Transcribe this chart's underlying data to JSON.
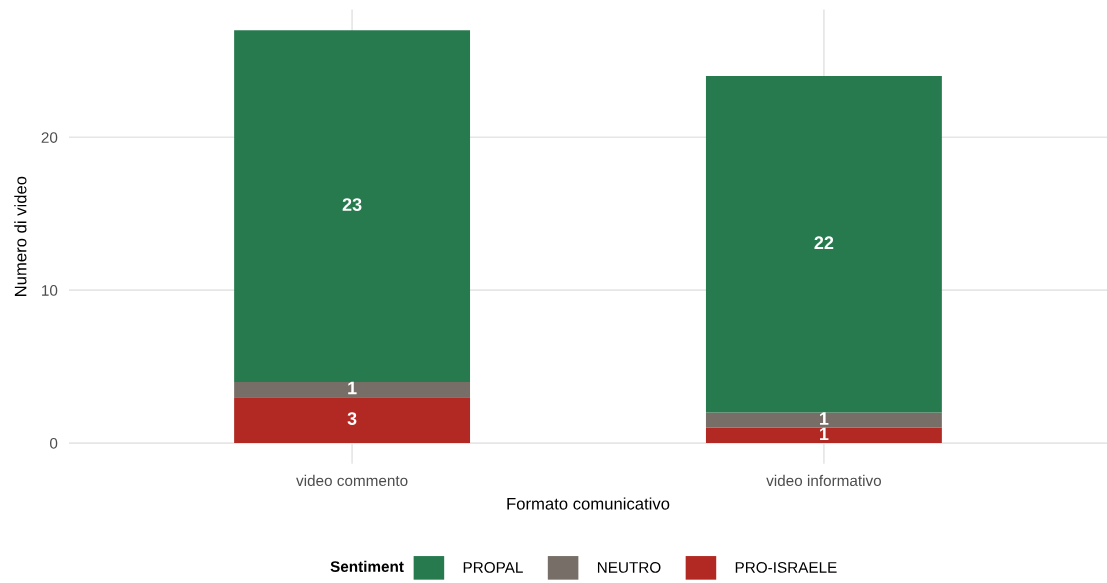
{
  "chart_data": {
    "type": "bar",
    "stacked": true,
    "categories": [
      "video commento",
      "video informativo"
    ],
    "series": [
      {
        "name": "PRO-ISRAELE",
        "color": "#b22822",
        "values": [
          3,
          1
        ]
      },
      {
        "name": "NEUTRO",
        "color": "#766e67",
        "values": [
          1,
          1
        ]
      },
      {
        "name": "PROPAL",
        "color": "#277a4e",
        "values": [
          23,
          22
        ]
      }
    ],
    "xlabel": "Formato comunicativo",
    "ylabel": "Numero di video",
    "legend_title": "Sentiment",
    "ylim": [
      -1.35,
      28.35
    ],
    "yticks": [
      0,
      10,
      20
    ],
    "grid": true,
    "legend": "bottom",
    "data_labels": true
  }
}
